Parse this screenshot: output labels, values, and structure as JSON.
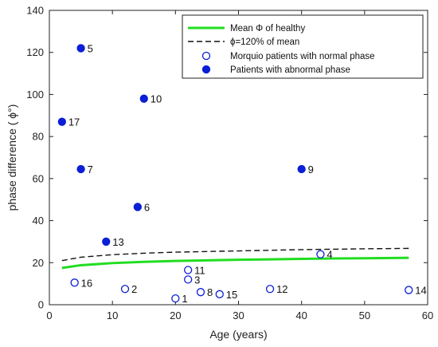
{
  "chart_data": {
    "type": "scatter",
    "xlabel": "Age (years)",
    "ylabel": "phase difference ( ϕ°)",
    "xlim": [
      0,
      60
    ],
    "ylim": [
      0,
      140
    ],
    "xticks": [
      0,
      10,
      20,
      30,
      40,
      50,
      60
    ],
    "yticks": [
      0,
      20,
      40,
      60,
      80,
      100,
      120,
      140
    ],
    "grid": false,
    "legend_position": "top-right",
    "colors": {
      "healthy_line": "#22dd22",
      "threshold_line": "#111111",
      "marker": "#0a1fd6"
    },
    "series": [
      {
        "name": "Mean Φ of healthy",
        "kind": "line",
        "x": [
          2,
          5,
          10,
          15,
          20,
          25,
          30,
          35,
          40,
          45,
          50,
          57
        ],
        "y": [
          17.5,
          18.8,
          19.8,
          20.4,
          20.8,
          21.1,
          21.4,
          21.6,
          21.8,
          22.0,
          22.1,
          22.3
        ]
      },
      {
        "name": "ϕ=120% of mean",
        "kind": "dashed-line",
        "x": [
          2,
          5,
          10,
          15,
          20,
          25,
          30,
          35,
          40,
          45,
          50,
          57
        ],
        "y": [
          21.0,
          22.6,
          23.8,
          24.5,
          25.0,
          25.3,
          25.6,
          25.9,
          26.2,
          26.4,
          26.6,
          26.8
        ]
      },
      {
        "name": "Morquio patients with normal phase",
        "kind": "open-marker",
        "points": [
          {
            "x": 20,
            "y": 3,
            "label": "1"
          },
          {
            "x": 12,
            "y": 7.5,
            "label": "2"
          },
          {
            "x": 22,
            "y": 12,
            "label": "3"
          },
          {
            "x": 43,
            "y": 24,
            "label": "4"
          },
          {
            "x": 24,
            "y": 6,
            "label": "8"
          },
          {
            "x": 22,
            "y": 16.5,
            "label": "11"
          },
          {
            "x": 35,
            "y": 7.5,
            "label": "12"
          },
          {
            "x": 57,
            "y": 7,
            "label": "14"
          },
          {
            "x": 27,
            "y": 5,
            "label": "15"
          },
          {
            "x": 4,
            "y": 10.5,
            "label": "16"
          }
        ]
      },
      {
        "name": "Patients with abnormal phase",
        "kind": "filled-marker",
        "points": [
          {
            "x": 5,
            "y": 122,
            "label": "5"
          },
          {
            "x": 14,
            "y": 46.5,
            "label": "6"
          },
          {
            "x": 5,
            "y": 64.5,
            "label": "7"
          },
          {
            "x": 40,
            "y": 64.5,
            "label": "9"
          },
          {
            "x": 15,
            "y": 98,
            "label": "10"
          },
          {
            "x": 9,
            "y": 30,
            "label": "13"
          },
          {
            "x": 2,
            "y": 87,
            "label": "17"
          }
        ]
      }
    ]
  }
}
